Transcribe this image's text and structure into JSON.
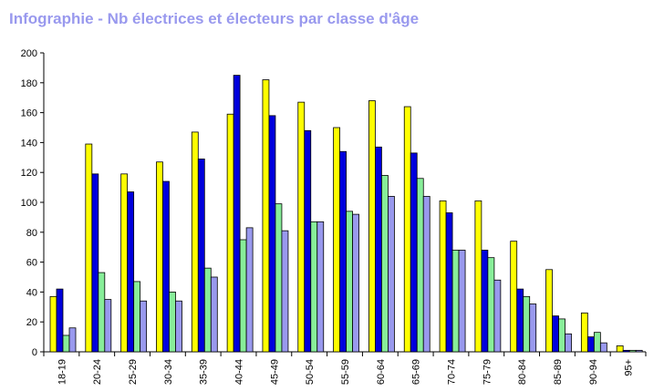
{
  "chart_data": {
    "type": "bar",
    "title": "Infographie - Nb électrices et électeurs par classe d'âge",
    "xlabel": "",
    "ylabel": "",
    "ylim": [
      0,
      200
    ],
    "yticks": [
      "0",
      "20",
      "40",
      "60",
      "80",
      "100",
      "120",
      "140",
      "160",
      "180",
      "200"
    ],
    "grid": false,
    "legend": "none",
    "categories": [
      "18-19",
      "20-24",
      "25-29",
      "30-34",
      "35-39",
      "40-44",
      "45-49",
      "50-54",
      "55-59",
      "60-64",
      "65-69",
      "70-74",
      "75-79",
      "80-84",
      "85-89",
      "90-94",
      "95+"
    ],
    "series": [
      {
        "color": "#ffff00",
        "values": [
          37,
          139,
          119,
          127,
          147,
          159,
          182,
          167,
          150,
          168,
          164,
          101,
          101,
          74,
          55,
          26,
          4
        ]
      },
      {
        "color": "#0000dd",
        "values": [
          42,
          119,
          107,
          114,
          129,
          185,
          158,
          148,
          134,
          137,
          133,
          93,
          68,
          42,
          24,
          10,
          1
        ]
      },
      {
        "color": "#88ee99",
        "values": [
          11,
          53,
          47,
          40,
          56,
          75,
          99,
          87,
          94,
          118,
          116,
          68,
          63,
          37,
          22,
          13,
          1
        ]
      },
      {
        "color": "#9999ee",
        "values": [
          16,
          35,
          34,
          34,
          50,
          83,
          81,
          87,
          92,
          104,
          104,
          68,
          48,
          32,
          12,
          6,
          1
        ]
      }
    ]
  }
}
